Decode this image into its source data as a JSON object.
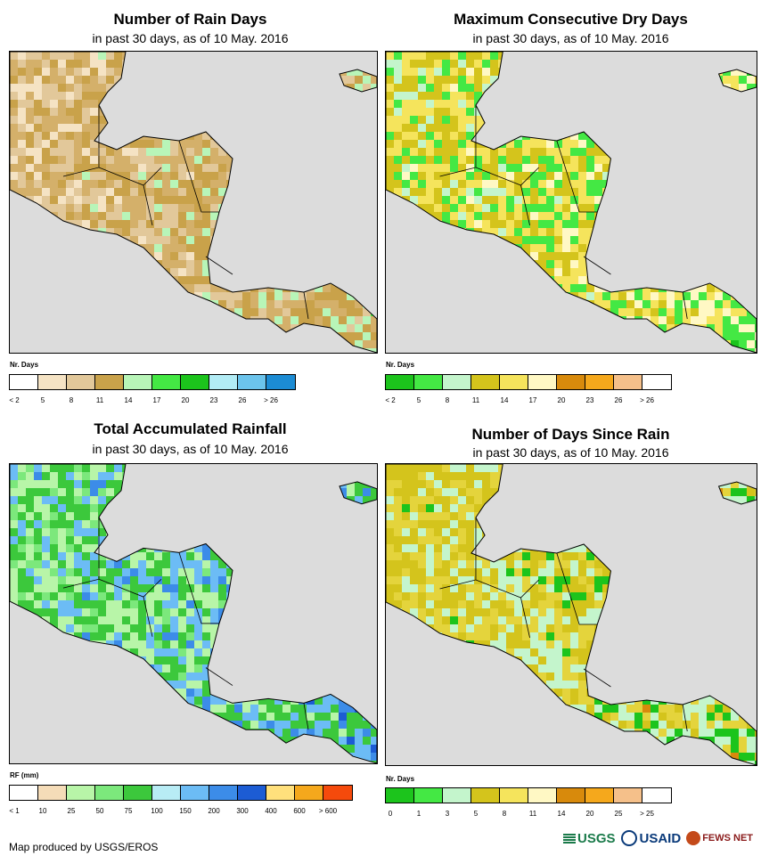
{
  "panels": [
    {
      "title": "Number of Rain Days",
      "subtitle": "in past 30 days, as of 10 May. 2016",
      "legend": {
        "label": "Nr. Days",
        "colors": [
          "#ffffff",
          "#f5e3c4",
          "#e2c89a",
          "#c9a24a",
          "#b8f5b8",
          "#44e844",
          "#1cc41c",
          "#b2ecf5",
          "#6cc4ec",
          "#1c8cd4"
        ],
        "ticks": [
          "< 2",
          "5",
          "8",
          "11",
          "14",
          "17",
          "20",
          "23",
          "26",
          "> 26"
        ]
      },
      "scheme": [
        "#f5e3c4",
        "#e2c89a",
        "#d4b06a",
        "#c9a24a",
        "#b8f5b8",
        "#44e844"
      ]
    },
    {
      "title": "Maximum Consecutive Dry Days",
      "subtitle": "in past 30 days, as of 10 May. 2016",
      "legend": {
        "label": "Nr. Days",
        "colors": [
          "#1cc41c",
          "#44e844",
          "#c4f5cc",
          "#d4c41c",
          "#f5e45c",
          "#fff8c4",
          "#d88a0c",
          "#f5a81c",
          "#f5c08a",
          "#ffffff"
        ],
        "ticks": [
          "< 2",
          "5",
          "8",
          "11",
          "14",
          "17",
          "20",
          "23",
          "26",
          "> 26"
        ]
      },
      "scheme": [
        "#c4f5cc",
        "#d4c41c",
        "#f5e45c",
        "#44e844",
        "#fff8c4",
        "#1cc41c"
      ]
    },
    {
      "title": "Total Accumulated Rainfall",
      "subtitle": "in past 30 days, as of 10 May. 2016",
      "legend": {
        "label": "RF (mm)",
        "colors": [
          "#ffffff",
          "#f5dcb8",
          "#b8f5a8",
          "#7ce87c",
          "#3cc83c",
          "#b8ecf5",
          "#6cbcf5",
          "#3c8ce8",
          "#1c5cd4",
          "#ffe07c",
          "#f5a81c",
          "#f54a0c"
        ],
        "ticks": [
          "< 1",
          "10",
          "25",
          "50",
          "75",
          "100",
          "150",
          "200",
          "300",
          "400",
          "600",
          "> 600"
        ]
      },
      "scheme": [
        "#7ce87c",
        "#b8f5a8",
        "#3cc83c",
        "#6cbcf5",
        "#3c8ce8",
        "#1c5cd4"
      ]
    },
    {
      "title": "Number of Days Since Rain",
      "subtitle": "in past 30 days, as of 10 May. 2016",
      "legend": {
        "label": "Nr. Days",
        "colors": [
          "#1cc41c",
          "#44e844",
          "#c4f5cc",
          "#d4c41c",
          "#f5e45c",
          "#fff8c4",
          "#d88a0c",
          "#f5a81c",
          "#f5c08a",
          "#ffffff"
        ],
        "ticks": [
          "0",
          "1",
          "3",
          "5",
          "8",
          "11",
          "14",
          "20",
          "25",
          "> 25"
        ]
      },
      "scheme": [
        "#d4c41c",
        "#d4c41c",
        "#e4d43c",
        "#c4f5cc",
        "#1cc41c",
        "#d88a0c"
      ]
    }
  ],
  "credit": "Map produced by USGS/EROS",
  "logos": {
    "usgs": "USGS",
    "usaid": "USAID",
    "fews": "FEWS NET"
  }
}
